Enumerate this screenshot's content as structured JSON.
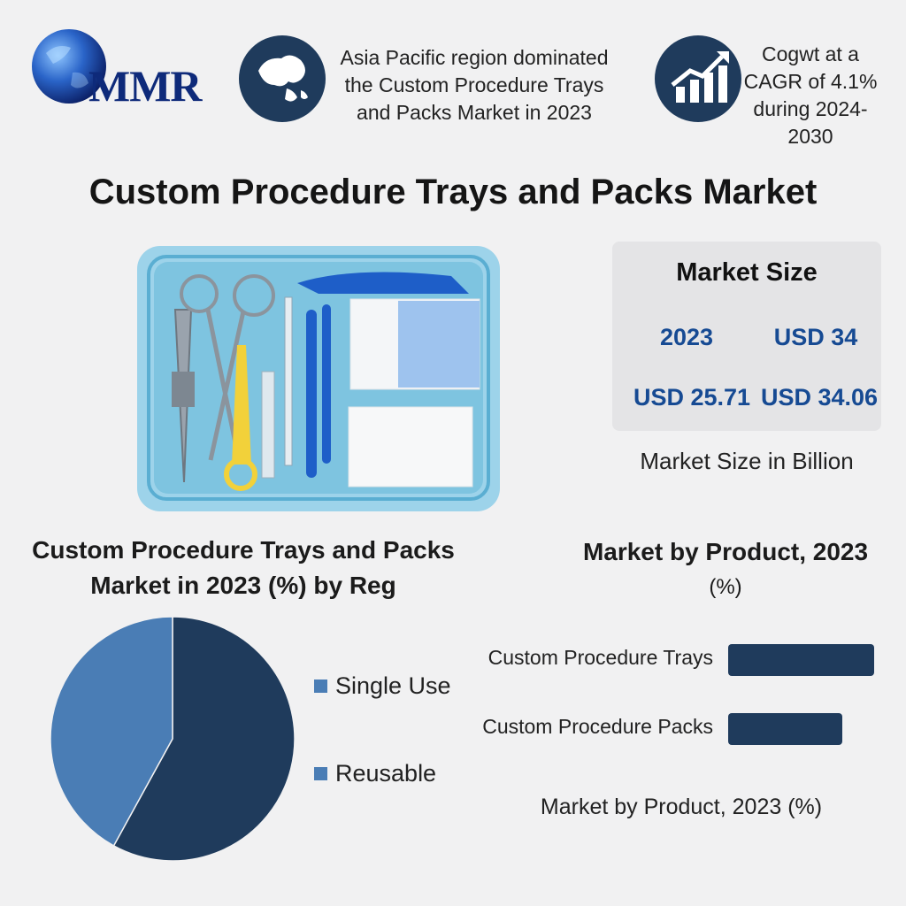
{
  "brand": {
    "logo_text": "MMR"
  },
  "highlights": {
    "region_note": [
      "Asia Pacific region dominated",
      "the Custom Procedure Trays",
      "and Packs Market in 2023"
    ],
    "growth_note": [
      "Cogwt at a",
      "CAGR of 4.1%",
      "during 2024-",
      "2030"
    ]
  },
  "title": "Custom Procedure Trays and Packs Market",
  "market_size": {
    "heading": "Market Size",
    "year_label": "2023",
    "year_value": "USD 34",
    "value_a": "USD 25.71",
    "value_b": "USD 34.06",
    "caption": "Market Size in Billion"
  },
  "colors": {
    "navy": "#1f3b5c",
    "steel_blue": "#4a7db5",
    "accent_blue": "#164a93",
    "tray_blue": "#7ec4e0"
  },
  "icons": [
    "globe-logo-icon",
    "world-map-icon",
    "growth-chart-icon",
    "procedure-tray-illustration"
  ],
  "chart_data": [
    {
      "type": "pie",
      "title": [
        "Custom Procedure Trays and Packs",
        "Market in 2023 (%) by Reg"
      ],
      "series": [
        {
          "name": "Single Use",
          "value": 42,
          "color": "#4a7db5"
        },
        {
          "name": "Reusable",
          "value": 58,
          "color": "#1f3b5c"
        }
      ]
    },
    {
      "type": "bar",
      "orientation": "horizontal",
      "title": [
        "Market by Product, 2023",
        "(%)"
      ],
      "categories": [
        "Custom Procedure Trays",
        "Custom Procedure Packs"
      ],
      "values": [
        100,
        78
      ],
      "color": "#1f3b5c",
      "xlabel": "Market by Product, 2023 (%)"
    }
  ]
}
